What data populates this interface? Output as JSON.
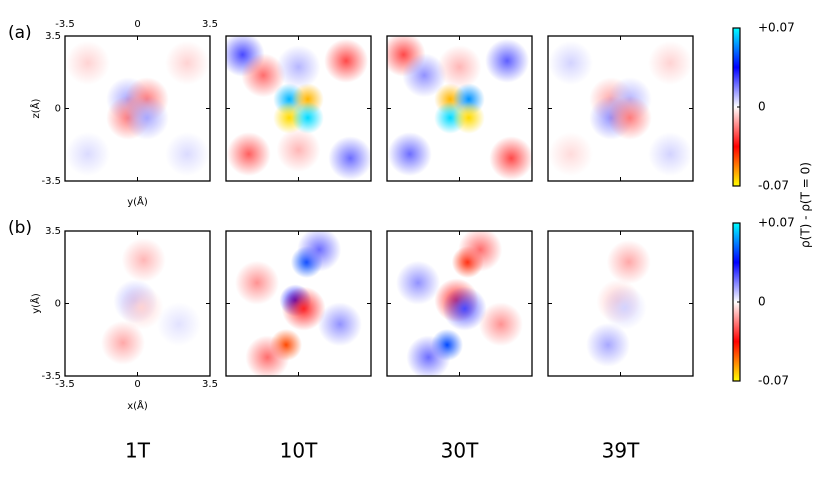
{
  "chart_data": {
    "type": "heatmap",
    "columns": [
      "1T",
      "10T",
      "30T",
      "39T"
    ],
    "clim": [
      -0.07,
      0.07
    ],
    "colormap": [
      "#ffff00",
      "#ff0000",
      "#ffffff",
      "#0000ff",
      "#00ffff"
    ],
    "cticks": [
      {
        "value": 0.07,
        "label": "+0.07"
      },
      0,
      {
        "value": -0.07,
        "label": "-0.07"
      }
    ],
    "colorbar_label": "ρ(T) - ρ(T = 0)",
    "rows": [
      {
        "label": "(a)",
        "xlabel": "y(Å)",
        "ylabel": "z(Å)",
        "xtick_side": "top",
        "xlim": [
          -3.5,
          3.5
        ],
        "ylim": [
          -3.5,
          3.5
        ],
        "xticks": [
          -3.5,
          0,
          3.5
        ],
        "yticks": [
          3.5,
          0,
          -3.5
        ],
        "panels": [
          {
            "blobs": [
              {
                "x": -0.45,
                "y": 0.45,
                "v": 0.012
              },
              {
                "x": 0.45,
                "y": 0.45,
                "v": -0.018
              },
              {
                "x": -0.45,
                "y": -0.45,
                "v": -0.018
              },
              {
                "x": 0.45,
                "y": -0.45,
                "v": 0.012
              },
              {
                "x": -2.4,
                "y": 2.2,
                "v": -0.006
              },
              {
                "x": 2.4,
                "y": 2.2,
                "v": -0.006
              },
              {
                "x": -2.4,
                "y": -2.2,
                "v": 0.005
              },
              {
                "x": 2.4,
                "y": -2.2,
                "v": 0.005
              }
            ]
          },
          {
            "blobs": [
              {
                "x": -0.45,
                "y": 0.45,
                "v": 0.06
              },
              {
                "x": 0.45,
                "y": 0.45,
                "v": -0.06
              },
              {
                "x": -0.45,
                "y": -0.45,
                "v": -0.065
              },
              {
                "x": 0.45,
                "y": -0.45,
                "v": 0.065
              },
              {
                "x": -2.7,
                "y": 2.6,
                "v": 0.025
              },
              {
                "x": -1.7,
                "y": 1.6,
                "v": -0.02
              },
              {
                "x": 2.3,
                "y": 2.3,
                "v": -0.025
              },
              {
                "x": -2.4,
                "y": -2.2,
                "v": -0.022
              },
              {
                "x": 2.5,
                "y": -2.4,
                "v": 0.02
              },
              {
                "x": 0,
                "y": 2.0,
                "v": 0.01
              },
              {
                "x": 0,
                "y": -2.0,
                "v": -0.01
              }
            ]
          },
          {
            "blobs": [
              {
                "x": -0.45,
                "y": 0.45,
                "v": -0.06
              },
              {
                "x": 0.45,
                "y": 0.45,
                "v": 0.055
              },
              {
                "x": -0.45,
                "y": -0.45,
                "v": 0.065
              },
              {
                "x": 0.45,
                "y": -0.45,
                "v": -0.065
              },
              {
                "x": -2.7,
                "y": 2.6,
                "v": -0.025
              },
              {
                "x": -1.7,
                "y": 1.6,
                "v": 0.015
              },
              {
                "x": 2.3,
                "y": 2.3,
                "v": 0.022
              },
              {
                "x": -2.4,
                "y": -2.2,
                "v": 0.02
              },
              {
                "x": 2.5,
                "y": -2.4,
                "v": -0.025
              },
              {
                "x": 0,
                "y": 2.0,
                "v": -0.01
              }
            ]
          },
          {
            "blobs": [
              {
                "x": -0.45,
                "y": 0.45,
                "v": -0.012
              },
              {
                "x": 0.45,
                "y": 0.45,
                "v": 0.01
              },
              {
                "x": -0.45,
                "y": -0.45,
                "v": 0.015
              },
              {
                "x": 0.45,
                "y": -0.45,
                "v": -0.018
              },
              {
                "x": -2.4,
                "y": 2.2,
                "v": 0.006
              },
              {
                "x": 2.4,
                "y": 2.2,
                "v": -0.006
              },
              {
                "x": -2.4,
                "y": -2.2,
                "v": -0.005
              },
              {
                "x": 2.4,
                "y": -2.2,
                "v": 0.006
              }
            ]
          }
        ]
      },
      {
        "label": "(b)",
        "xlabel": "x(Å)",
        "ylabel": "y(Å)",
        "xtick_side": "bottom",
        "xlim": [
          -3.5,
          3.5
        ],
        "ylim": [
          -3.5,
          3.5
        ],
        "xticks": [
          -3.5,
          0,
          3.5
        ],
        "yticks": [
          3.5,
          0,
          -3.5
        ],
        "panels": [
          {
            "blobs": [
              {
                "x": 0.3,
                "y": 2.1,
                "v": -0.01
              },
              {
                "x": -0.7,
                "y": -1.9,
                "v": -0.012
              },
              {
                "x": -0.1,
                "y": 0.1,
                "v": 0.01
              },
              {
                "x": 0.2,
                "y": -0.2,
                "v": -0.006
              },
              {
                "x": 2.0,
                "y": -1.0,
                "v": 0.004
              }
            ]
          },
          {
            "blobs": [
              {
                "x": 0.4,
                "y": 2.0,
                "v": 0.045
              },
              {
                "x": -0.6,
                "y": -2.0,
                "v": -0.045
              },
              {
                "x": -0.15,
                "y": 0.15,
                "v": 0.035
              },
              {
                "x": 0.25,
                "y": -0.25,
                "v": -0.03
              },
              {
                "x": -2.0,
                "y": 1.0,
                "v": -0.015
              },
              {
                "x": 2.0,
                "y": -1.0,
                "v": 0.015
              },
              {
                "x": -1.5,
                "y": -2.6,
                "v": -0.02
              },
              {
                "x": 1.0,
                "y": 2.6,
                "v": 0.02
              }
            ]
          },
          {
            "blobs": [
              {
                "x": 0.4,
                "y": 2.0,
                "v": -0.04
              },
              {
                "x": -0.6,
                "y": -2.0,
                "v": 0.045
              },
              {
                "x": -0.15,
                "y": 0.15,
                "v": -0.03
              },
              {
                "x": 0.25,
                "y": -0.25,
                "v": 0.025
              },
              {
                "x": -2.0,
                "y": 1.0,
                "v": 0.015
              },
              {
                "x": 2.0,
                "y": -1.0,
                "v": -0.015
              },
              {
                "x": -1.5,
                "y": -2.6,
                "v": 0.02
              },
              {
                "x": 1.0,
                "y": 2.6,
                "v": -0.02
              }
            ]
          },
          {
            "blobs": [
              {
                "x": 0.4,
                "y": 2.0,
                "v": -0.012
              },
              {
                "x": -0.6,
                "y": -2.0,
                "v": 0.012
              },
              {
                "x": -0.1,
                "y": 0.1,
                "v": -0.008
              },
              {
                "x": 0.2,
                "y": -0.2,
                "v": 0.006
              }
            ]
          }
        ]
      }
    ]
  }
}
